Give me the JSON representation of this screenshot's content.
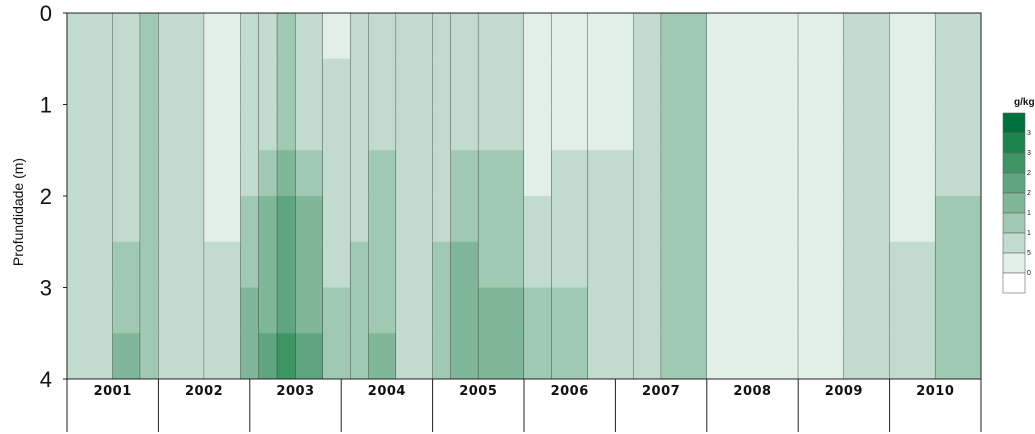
{
  "chart_data": {
    "type": "heatmap",
    "title": "",
    "ylabel": "Profundidade (m)",
    "xlabel": "",
    "y_ticks": [
      "0",
      "1",
      "2",
      "3",
      "4"
    ],
    "ylim": [
      0,
      4
    ],
    "y_inverted": true,
    "x_categories": [
      "2001",
      "2002",
      "2003",
      "2004",
      "2005",
      "2006",
      "2007",
      "2008",
      "2009",
      "2010"
    ],
    "legend": {
      "title": "g/kg",
      "placement": "right",
      "ticks": [
        "3",
        "3",
        "2",
        "2",
        "1",
        "1",
        "5",
        "0"
      ],
      "colors": [
        "#ffffff",
        "#e2efe9",
        "#c1dccf",
        "#a0c9b4",
        "#7fb798",
        "#5ea67f",
        "#3f9566",
        "#1e844e",
        "#00703c"
      ]
    },
    "depth_levels": [
      0,
      0.5,
      1,
      1.5,
      2,
      2.5,
      3,
      3.5,
      4
    ],
    "columns": [
      {
        "t": 0.0,
        "levels": [
          2,
          2,
          2,
          2,
          2,
          2,
          2,
          2,
          2
        ]
      },
      {
        "t": 0.05,
        "levels": [
          2,
          2,
          2,
          2,
          2,
          2,
          3,
          3,
          4
        ]
      },
      {
        "t": 0.08,
        "levels": [
          3,
          3,
          3,
          3,
          3,
          3,
          3,
          3,
          3
        ]
      },
      {
        "t": 0.1,
        "levels": [
          2,
          2,
          2,
          2,
          2,
          2,
          2,
          2,
          2
        ]
      },
      {
        "t": 0.15,
        "levels": [
          1,
          1,
          1,
          1,
          1,
          1,
          2,
          2,
          2
        ]
      },
      {
        "t": 0.19,
        "levels": [
          2,
          2,
          2,
          2,
          2,
          3,
          3,
          4,
          4
        ]
      },
      {
        "t": 0.21,
        "levels": [
          2,
          2,
          2,
          2,
          3,
          4,
          4,
          4,
          5
        ]
      },
      {
        "t": 0.23,
        "levels": [
          3,
          3,
          3,
          3,
          4,
          5,
          5,
          5,
          6
        ]
      },
      {
        "t": 0.25,
        "levels": [
          2,
          2,
          2,
          2,
          3,
          4,
          4,
          4,
          5
        ]
      },
      {
        "t": 0.28,
        "levels": [
          1,
          1,
          2,
          2,
          2,
          2,
          2,
          3,
          3
        ]
      },
      {
        "t": 0.31,
        "levels": [
          2,
          2,
          2,
          2,
          2,
          2,
          3,
          3,
          3
        ]
      },
      {
        "t": 0.33,
        "levels": [
          2,
          2,
          2,
          2,
          3,
          3,
          3,
          3,
          4
        ]
      },
      {
        "t": 0.36,
        "levels": [
          2,
          2,
          2,
          2,
          2,
          2,
          2,
          2,
          2
        ]
      },
      {
        "t": 0.4,
        "levels": [
          2,
          2,
          2,
          2,
          2,
          2,
          3,
          3,
          3
        ]
      },
      {
        "t": 0.42,
        "levels": [
          2,
          2,
          2,
          2,
          3,
          3,
          4,
          4,
          4
        ]
      },
      {
        "t": 0.45,
        "levels": [
          2,
          2,
          2,
          2,
          3,
          3,
          3,
          4,
          3
        ]
      },
      {
        "t": 0.5,
        "levels": [
          1,
          1,
          1,
          1,
          1,
          2,
          2,
          3,
          3
        ]
      },
      {
        "t": 0.53,
        "levels": [
          1,
          1,
          1,
          1,
          2,
          2,
          2,
          3,
          3
        ]
      },
      {
        "t": 0.57,
        "levels": [
          1,
          1,
          1,
          1,
          2,
          2,
          2,
          2,
          2
        ]
      },
      {
        "t": 0.62,
        "levels": [
          2,
          2,
          2,
          2,
          2,
          2,
          2,
          2,
          2
        ]
      },
      {
        "t": 0.65,
        "levels": [
          3,
          3,
          3,
          3,
          3,
          3,
          3,
          3,
          3
        ]
      },
      {
        "t": 0.7,
        "levels": [
          1,
          1,
          1,
          1,
          1,
          1,
          1,
          1,
          1
        ]
      },
      {
        "t": 0.8,
        "levels": [
          1,
          1,
          1,
          1,
          1,
          1,
          1,
          1,
          1
        ]
      },
      {
        "t": 0.85,
        "levels": [
          2,
          2,
          2,
          2,
          2,
          2,
          2,
          2,
          2
        ]
      },
      {
        "t": 0.9,
        "levels": [
          1,
          1,
          1,
          1,
          1,
          1,
          2,
          2,
          2
        ]
      },
      {
        "t": 0.95,
        "levels": [
          2,
          2,
          2,
          2,
          2,
          3,
          3,
          3,
          3
        ]
      },
      {
        "t": 1.0,
        "levels": [
          2,
          2,
          2,
          2,
          3,
          3,
          3,
          3,
          3
        ]
      }
    ]
  }
}
